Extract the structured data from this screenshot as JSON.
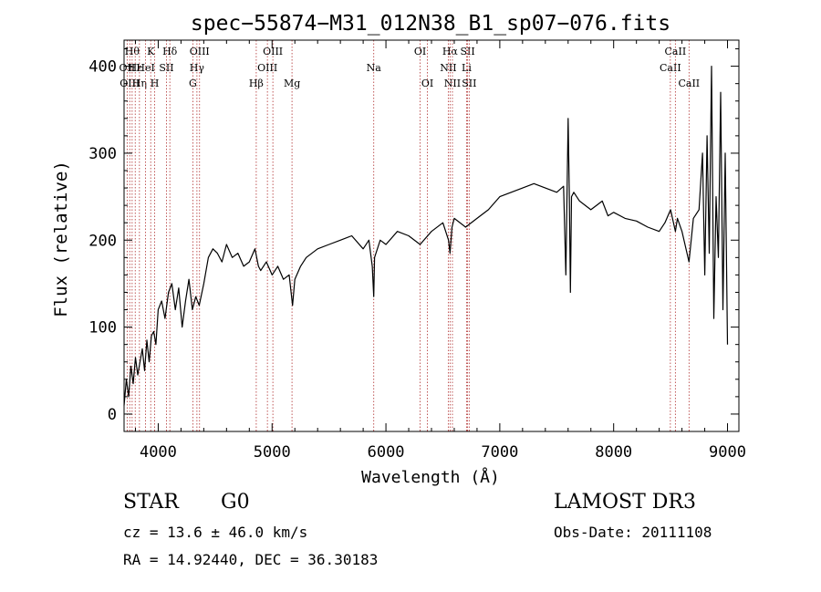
{
  "chart_data": {
    "type": "line",
    "title": "spec−55874−M31_012N38_B1_sp07−076.fits",
    "xlabel": "Wavelength (Å)",
    "ylabel": "Flux (relative)",
    "xlim": [
      3700,
      9100
    ],
    "ylim": [
      -20,
      430
    ],
    "x_ticks": [
      4000,
      5000,
      6000,
      7000,
      8000,
      9000
    ],
    "y_ticks": [
      0,
      100,
      200,
      300,
      400
    ],
    "grid": false,
    "series": [
      {
        "color": "#000000",
        "x": [
          3700,
          3720,
          3740,
          3760,
          3780,
          3800,
          3820,
          3840,
          3860,
          3880,
          3900,
          3920,
          3940,
          3960,
          3980,
          4000,
          4030,
          4060,
          4090,
          4120,
          4150,
          4180,
          4210,
          4240,
          4270,
          4300,
          4330,
          4360,
          4400,
          4440,
          4480,
          4520,
          4560,
          4600,
          4650,
          4700,
          4750,
          4800,
          4850,
          4880,
          4900,
          4950,
          5000,
          5050,
          5100,
          5150,
          5180,
          5200,
          5250,
          5300,
          5400,
          5500,
          5600,
          5700,
          5800,
          5850,
          5880,
          5893,
          5900,
          5950,
          6000,
          6100,
          6200,
          6300,
          6400,
          6500,
          6550,
          6563,
          6580,
          6600,
          6700,
          6800,
          6900,
          7000,
          7100,
          7200,
          7300,
          7400,
          7500,
          7560,
          7580,
          7600,
          7610,
          7620,
          7630,
          7650,
          7700,
          7750,
          7800,
          7850,
          7900,
          7950,
          8000,
          8100,
          8200,
          8300,
          8400,
          8450,
          8500,
          8542,
          8560,
          8600,
          8662,
          8700,
          8750,
          8780,
          8800,
          8820,
          8840,
          8860,
          8880,
          8900,
          8920,
          8940,
          8960,
          8980,
          9000
        ],
        "y": [
          10,
          40,
          20,
          55,
          35,
          65,
          45,
          60,
          75,
          50,
          85,
          60,
          90,
          95,
          80,
          120,
          130,
          110,
          140,
          150,
          120,
          145,
          100,
          130,
          155,
          120,
          135,
          125,
          150,
          180,
          190,
          185,
          175,
          195,
          180,
          185,
          170,
          175,
          190,
          170,
          165,
          175,
          160,
          170,
          155,
          160,
          125,
          155,
          170,
          180,
          190,
          195,
          200,
          205,
          190,
          200,
          170,
          135,
          180,
          200,
          195,
          210,
          205,
          195,
          210,
          220,
          200,
          185,
          215,
          225,
          215,
          225,
          235,
          250,
          255,
          260,
          265,
          260,
          255,
          262,
          160,
          340,
          260,
          140,
          250,
          255,
          245,
          240,
          235,
          240,
          245,
          228,
          232,
          225,
          222,
          215,
          210,
          220,
          235,
          210,
          225,
          210,
          175,
          225,
          235,
          300,
          160,
          320,
          185,
          400,
          110,
          250,
          180,
          370,
          120,
          300,
          80
        ]
      }
    ],
    "line_markers": [
      {
        "wl": 3727,
        "top": "OII",
        "row": 1
      },
      {
        "wl": 3750,
        "top": "OIII",
        "row": 2
      },
      {
        "wl": 3771,
        "top": "Hθ",
        "row": 0
      },
      {
        "wl": 3798,
        "top": "Hε",
        "row": 1
      },
      {
        "wl": 3835,
        "top": "Hη",
        "row": 2
      },
      {
        "wl": 3889,
        "top": "HeI",
        "row": 1
      },
      {
        "wl": 3934,
        "top": "K",
        "row": 0
      },
      {
        "wl": 3969,
        "top": "H",
        "row": 2
      },
      {
        "wl": 4072,
        "top": "SII",
        "row": 1
      },
      {
        "wl": 4102,
        "top": "Hδ",
        "row": 0
      },
      {
        "wl": 4304,
        "top": "G",
        "row": 2
      },
      {
        "wl": 4340,
        "top": "Hγ",
        "row": 1
      },
      {
        "wl": 4363,
        "top": "OIII",
        "row": 0
      },
      {
        "wl": 4861,
        "top": "Hβ",
        "row": 2
      },
      {
        "wl": 4959,
        "top": "OIII",
        "row": 1
      },
      {
        "wl": 5007,
        "top": "OIII",
        "row": 0
      },
      {
        "wl": 5175,
        "top": "Mg",
        "row": 2
      },
      {
        "wl": 5893,
        "top": "Na",
        "row": 1
      },
      {
        "wl": 6300,
        "top": "OI",
        "row": 0
      },
      {
        "wl": 6364,
        "top": "OI",
        "row": 2
      },
      {
        "wl": 6548,
        "top": "NII",
        "row": 1
      },
      {
        "wl": 6563,
        "top": "Hα",
        "row": 0
      },
      {
        "wl": 6584,
        "top": "NII",
        "row": 2
      },
      {
        "wl": 6708,
        "top": "Li",
        "row": 1
      },
      {
        "wl": 6717,
        "top": "SII",
        "row": 0
      },
      {
        "wl": 6731,
        "top": "SII",
        "row": 2
      },
      {
        "wl": 8498,
        "top": "CaII",
        "row": 1
      },
      {
        "wl": 8542,
        "top": "CaII",
        "row": 0
      },
      {
        "wl": 8662,
        "top": "CaII",
        "row": 2
      }
    ]
  },
  "info": {
    "class_type": "STAR",
    "subclass": "G0",
    "survey": "LAMOST DR3",
    "cz": "cz = 13.6 ± 46.0 km/s",
    "obs_date": "Obs-Date: 20111108",
    "ra_dec": "RA =  14.92440, DEC =  36.30183"
  }
}
